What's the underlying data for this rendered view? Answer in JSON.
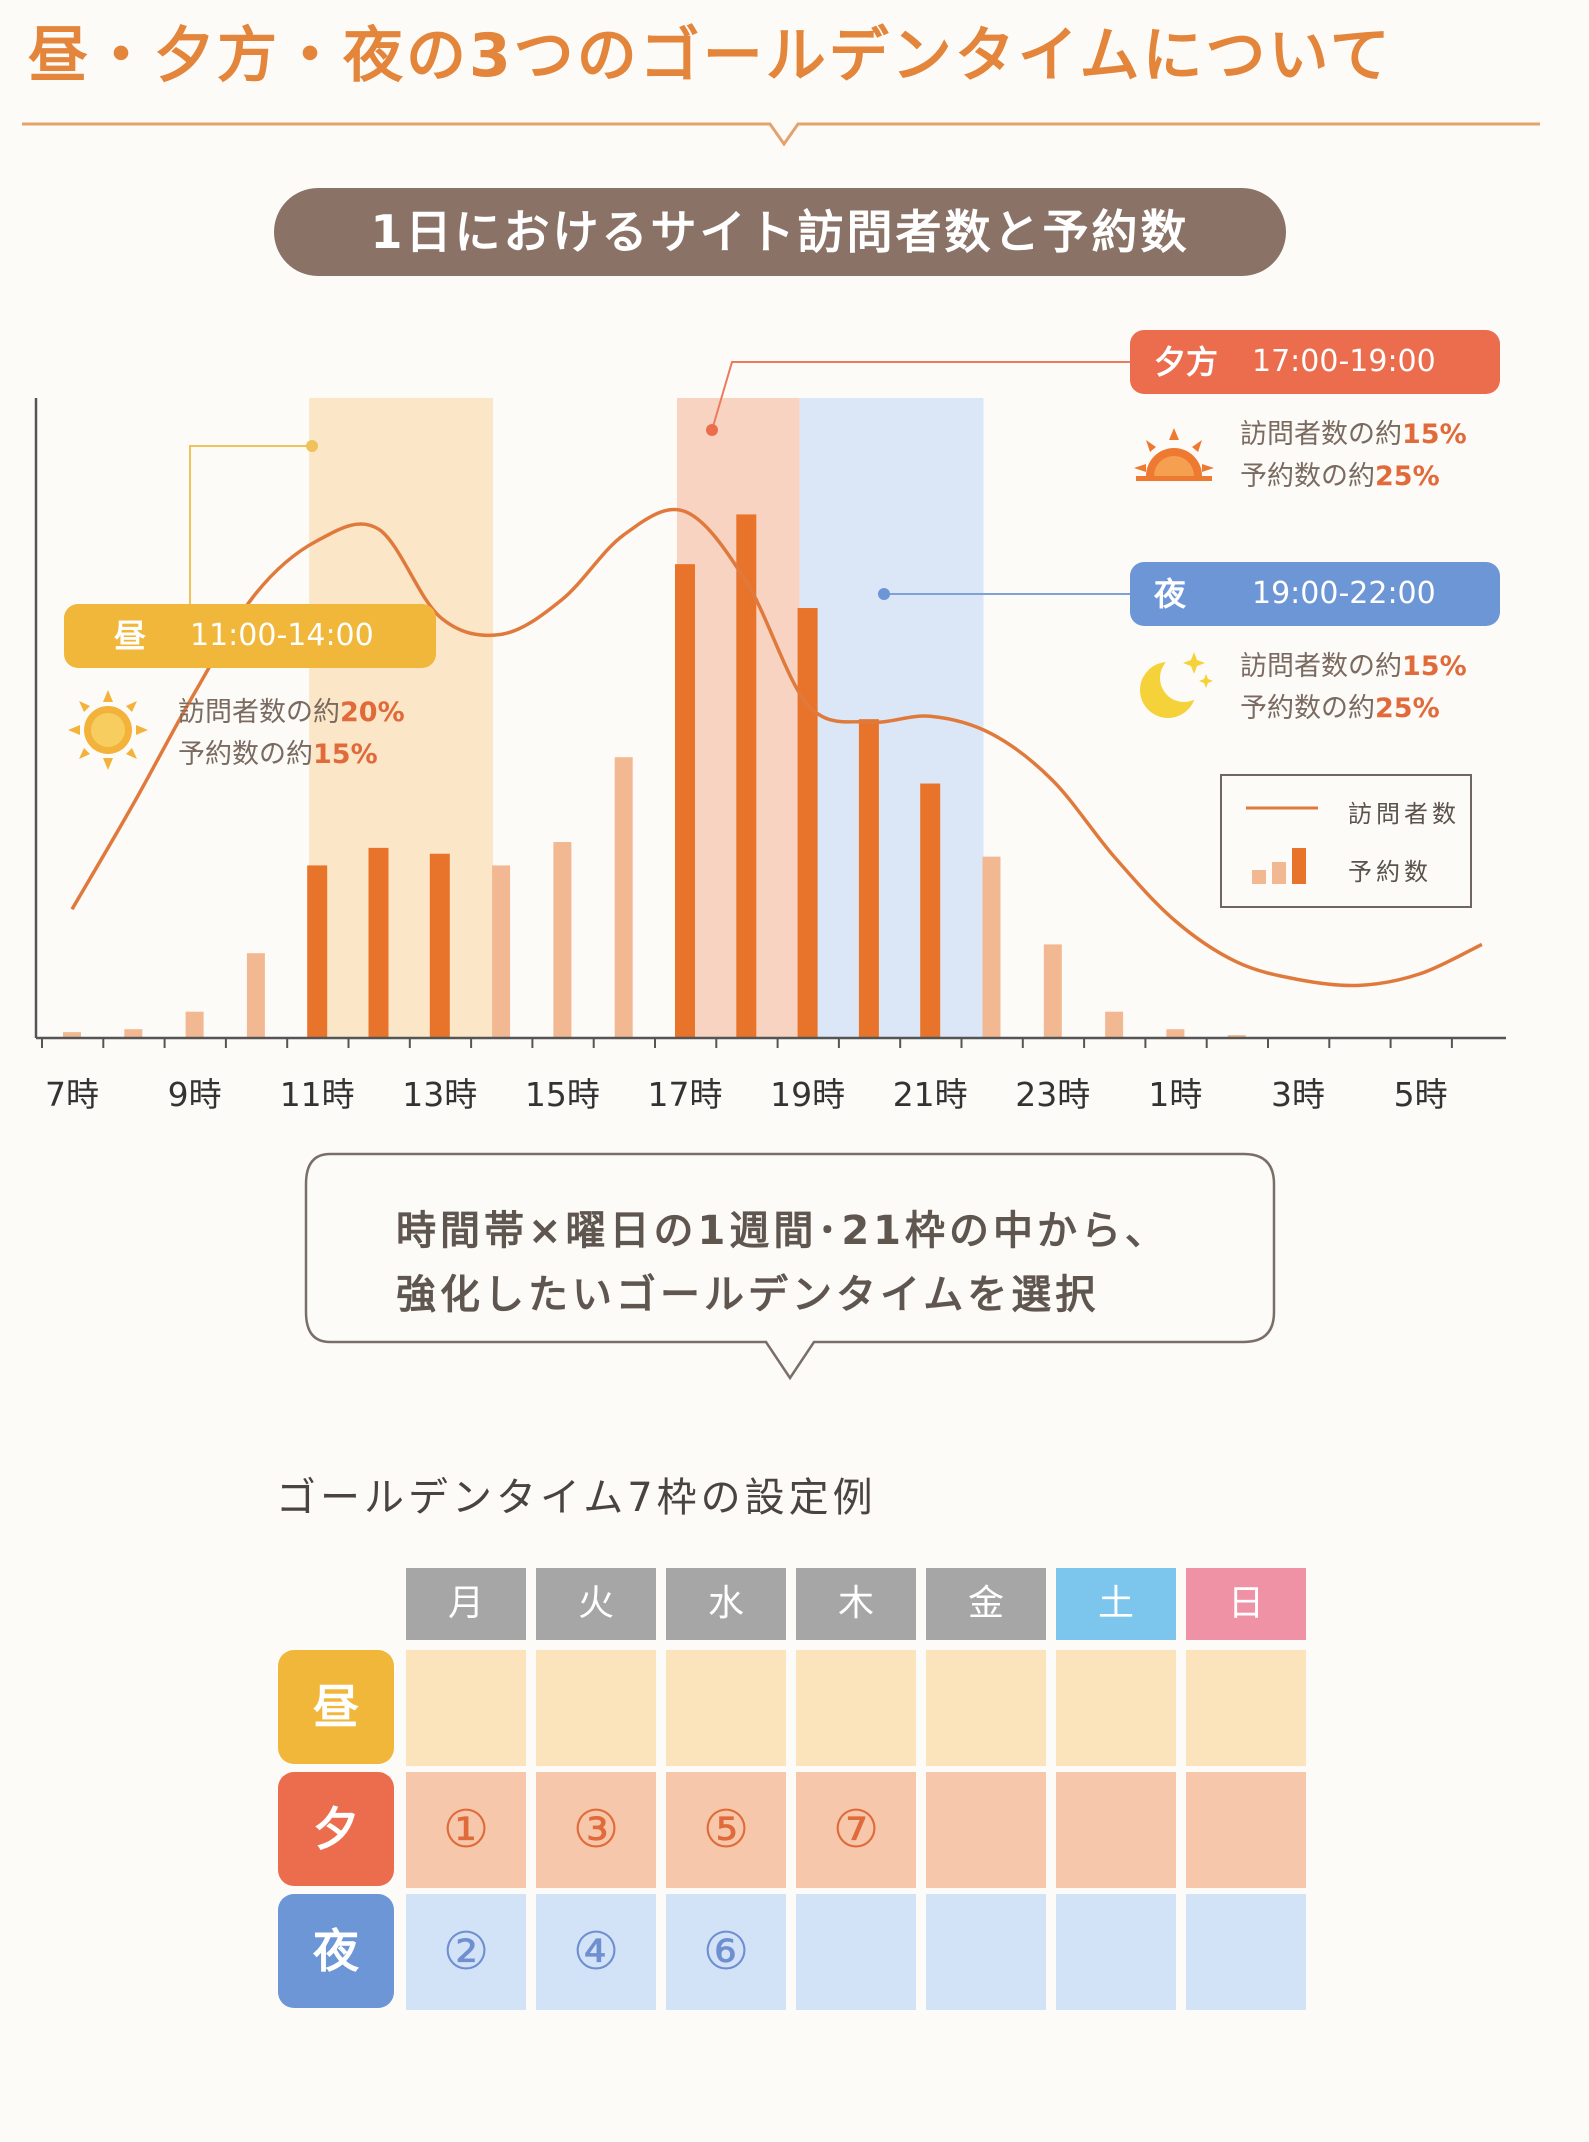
{
  "header": {
    "title": "昼・夕方・夜の3つのゴールデンタイムについて",
    "chart_title": "1日におけるサイト訪問者数と予約数"
  },
  "colors": {
    "accent": "#e3853a",
    "visitor_line": "#e07a3c",
    "bar_light": "#f2b892",
    "bar_dark": "#e8732a",
    "band_day": "#fbe6c8",
    "band_evening": "#f8d3c2",
    "band_night": "#dbe7f6",
    "label_day": "#f0b73a",
    "label_evening": "#ec6c4e",
    "label_night": "#6c96d6"
  },
  "callouts": {
    "day": {
      "label": "昼",
      "time": "11:00-14:00",
      "visitor_prefix": "訪問者数の約",
      "visitor_pct": "20%",
      "booking_prefix": "予約数の約",
      "booking_pct": "15%",
      "icon": "sun-icon"
    },
    "evening": {
      "label": "夕方",
      "time": "17:00-19:00",
      "visitor_prefix": "訪問者数の約",
      "visitor_pct": "15%",
      "booking_prefix": "予約数の約",
      "booking_pct": "25%",
      "icon": "sunset-icon"
    },
    "night": {
      "label": "夜",
      "time": "19:00-22:00",
      "visitor_prefix": "訪問者数の約",
      "visitor_pct": "15%",
      "booking_prefix": "予約数の約",
      "booking_pct": "25%",
      "icon": "moon-icon"
    }
  },
  "legend": {
    "line": "訪問者数",
    "bars": "予約数"
  },
  "chart_data": {
    "type": "bar",
    "x_tick_labels": [
      "7時",
      "9時",
      "11時",
      "13時",
      "15時",
      "17時",
      "19時",
      "21時",
      "23時",
      "1時",
      "3時",
      "5時"
    ],
    "hours": [
      7,
      8,
      9,
      10,
      11,
      12,
      13,
      14,
      15,
      16,
      17,
      18,
      19,
      20,
      21,
      22,
      23,
      24,
      25,
      26,
      27,
      28,
      29
    ],
    "series": [
      {
        "name": "予約数",
        "kind": "bar",
        "values": [
          1,
          1.5,
          4.5,
          14.5,
          29.5,
          32.5,
          31.5,
          29.5,
          33.5,
          48,
          81,
          89.5,
          73.5,
          54.5,
          43.5,
          31,
          16,
          4.5,
          1.5,
          0.5,
          0,
          0,
          0
        ],
        "highlighted": [
          false,
          false,
          false,
          false,
          true,
          true,
          true,
          false,
          false,
          false,
          true,
          true,
          true,
          true,
          true,
          false,
          false,
          false,
          false,
          false,
          false,
          false,
          false
        ]
      },
      {
        "name": "訪問者数",
        "kind": "line",
        "x": [
          7,
          8,
          9,
          10,
          11,
          12,
          13,
          14,
          15,
          16,
          17,
          18,
          19,
          20,
          21,
          22,
          23,
          24,
          25,
          26,
          27,
          28,
          29,
          30
        ],
        "values": [
          22,
          40,
          59,
          76,
          85,
          87,
          72,
          69,
          75,
          86,
          90,
          78,
          57,
          54,
          55,
          52,
          44,
          31,
          20,
          13,
          10,
          9,
          11,
          16
        ]
      }
    ],
    "highlight_bands": [
      {
        "label": "昼",
        "from": 11,
        "to": 14
      },
      {
        "label": "夕方",
        "from": 17,
        "to": 19
      },
      {
        "label": "夜",
        "from": 19,
        "to": 22
      }
    ],
    "ylim": [
      0,
      100
    ]
  },
  "message": {
    "line1": "時間帯×曜日の1週間･21枠の中から、",
    "line2": "強化したいゴールデンタイムを選択"
  },
  "schedule": {
    "title": "ゴールデンタイム7枠の設定例",
    "days": [
      "月",
      "火",
      "水",
      "木",
      "金",
      "土",
      "日"
    ],
    "day_colors": [
      "#a6a6a6",
      "#a6a6a6",
      "#a6a6a6",
      "#a6a6a6",
      "#a6a6a6",
      "#7cc6ee",
      "#ef92a6"
    ],
    "rows": [
      {
        "label": "昼",
        "label_color": "#f0b73a",
        "cell_color": "#fbe4bb",
        "mark_color": "#e06a3a",
        "cells": [
          "",
          "",
          "",
          "",
          "",
          "",
          ""
        ]
      },
      {
        "label": "夕",
        "label_color": "#ec6c4e",
        "cell_color": "#f6c7aa",
        "mark_color": "#e06a3a",
        "cells": [
          "①",
          "③",
          "⑤",
          "⑦",
          "",
          "",
          ""
        ]
      },
      {
        "label": "夜",
        "label_color": "#6c96d6",
        "cell_color": "#d3e3f7",
        "mark_color": "#6f8fd0",
        "cells": [
          "②",
          "④",
          "⑥",
          "",
          "",
          "",
          ""
        ]
      }
    ]
  }
}
